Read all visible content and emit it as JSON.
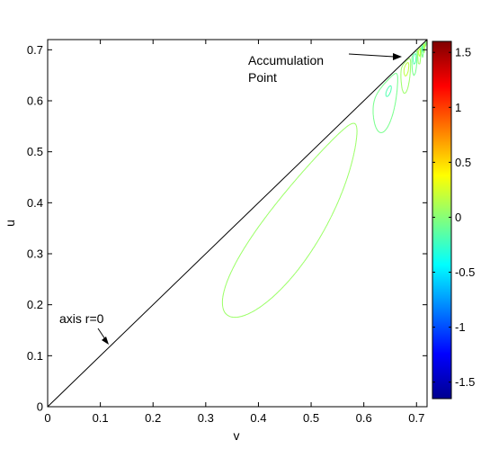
{
  "chart_data": {
    "type": "contour",
    "xlabel": "v",
    "ylabel": "u",
    "xlim": [
      0,
      0.72
    ],
    "ylim": [
      0,
      0.72
    ],
    "x_ticks": [
      "0",
      "0.1",
      "0.2",
      "0.3",
      "0.4",
      "0.5",
      "0.6",
      "0.7"
    ],
    "y_ticks": [
      "0",
      "0.1",
      "0.2",
      "0.3",
      "0.4",
      "0.5",
      "0.6",
      "0.7"
    ],
    "colorbar": {
      "colormap": "jet",
      "range": [
        -1.65,
        1.6
      ],
      "ticks": [
        "-1.5",
        "-1",
        "-0.5",
        "0",
        "0.5",
        "1",
        "1.5"
      ]
    },
    "diagonal_line": {
      "from": [
        0,
        0
      ],
      "to": [
        0.72,
        0.72
      ]
    },
    "annotations": {
      "axis": "axis r=0",
      "accumulation_line1": "Accumulation",
      "accumulation_line2": "Point"
    }
  }
}
